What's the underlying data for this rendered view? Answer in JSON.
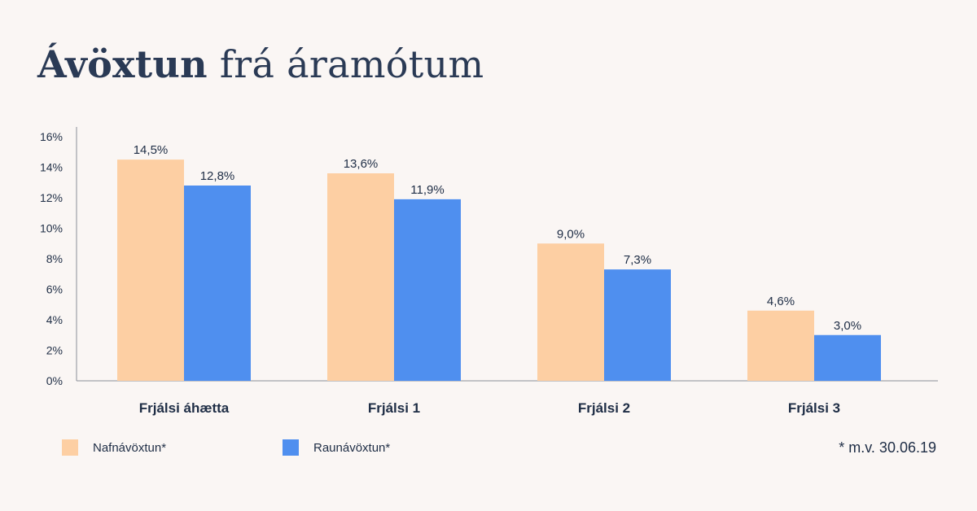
{
  "title": {
    "bold": "Ávöxtun",
    "rest": "frá áramótum"
  },
  "footnote": "* m.v. 30.06.19",
  "chart_data": {
    "type": "bar",
    "categories": [
      "Frjálsi áhætta",
      "Frjálsi 1",
      "Frjálsi 2",
      "Frjálsi 3"
    ],
    "series": [
      {
        "name": "Nafnávöxtun*",
        "color": "#fdcfa3",
        "values": [
          14.5,
          13.6,
          9.0,
          4.6
        ],
        "labels": [
          "14,5%",
          "13,6%",
          "9,0%",
          "4,6%"
        ]
      },
      {
        "name": "Raunávöxtun*",
        "color": "#4f8fef",
        "values": [
          12.8,
          11.9,
          7.3,
          3.0
        ],
        "labels": [
          "12,8%",
          "11,9%",
          "7,3%",
          "3,0%"
        ]
      }
    ],
    "ylim": [
      0,
      16
    ],
    "yticks": [
      0,
      2,
      4,
      6,
      8,
      10,
      12,
      14,
      16
    ],
    "ytick_labels": [
      "0%",
      "2%",
      "4%",
      "6%",
      "8%",
      "10%",
      "12%",
      "14%",
      "16%"
    ],
    "grid": false,
    "legend": "bottom-left"
  }
}
